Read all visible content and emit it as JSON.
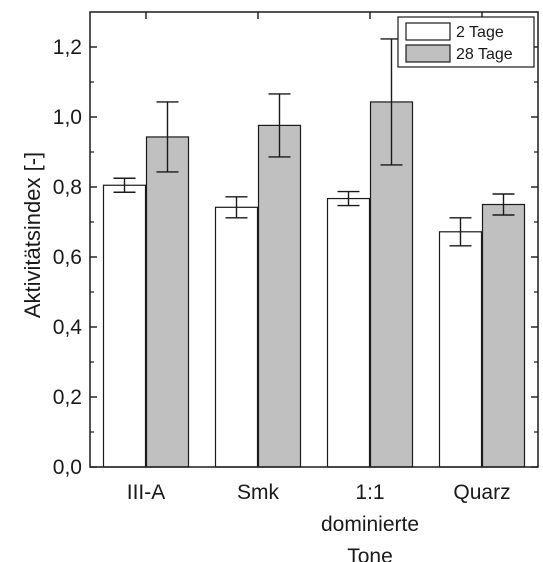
{
  "chart_data": {
    "type": "bar",
    "title": "",
    "xlabel": "",
    "ylabel": "Aktivitätsindex [-]",
    "ylim": [
      0,
      1.3
    ],
    "y_ticks": [
      "0,0",
      "0,2",
      "0,4",
      "0,6",
      "0,8",
      "1,0",
      "1,2"
    ],
    "y_tick_values": [
      0,
      0.2,
      0.4,
      0.6,
      0.8,
      1.0,
      1.2
    ],
    "categories": [
      [
        "III-A"
      ],
      [
        "Smk"
      ],
      [
        "1:1",
        "dominierte",
        "Tone"
      ],
      [
        "Quarz"
      ]
    ],
    "series": [
      {
        "name": "2 Tage",
        "color": "#ffffff",
        "values": [
          0.805,
          0.742,
          0.767,
          0.672
        ],
        "errors": [
          0.02,
          0.03,
          0.02,
          0.04
        ]
      },
      {
        "name": "28 Tage",
        "color": "#c0c0c0",
        "values": [
          0.943,
          0.976,
          1.043,
          0.75
        ],
        "errors": [
          0.1,
          0.09,
          0.18,
          0.03
        ]
      }
    ],
    "legend_position": "top-right",
    "grid": false
  }
}
